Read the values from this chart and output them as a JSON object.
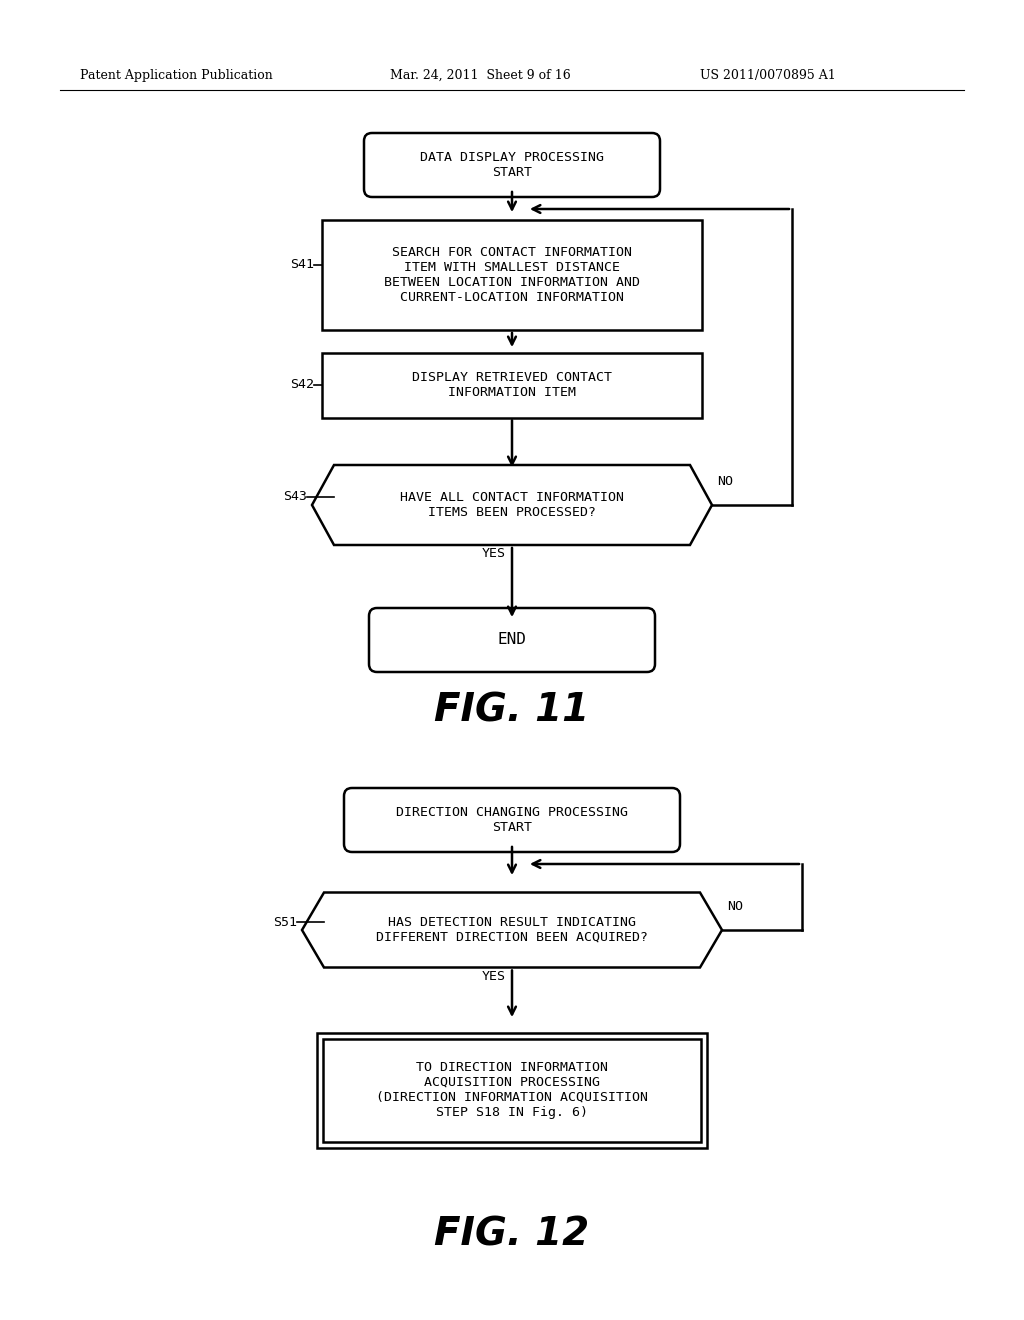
{
  "bg_color": "#ffffff",
  "header_left": "Patent Application Publication",
  "header_mid": "Mar. 24, 2011  Sheet 9 of 16",
  "header_right": "US 2011/0070895 A1",
  "fig11_label": "FIG. 11",
  "fig12_label": "FIG. 12"
}
